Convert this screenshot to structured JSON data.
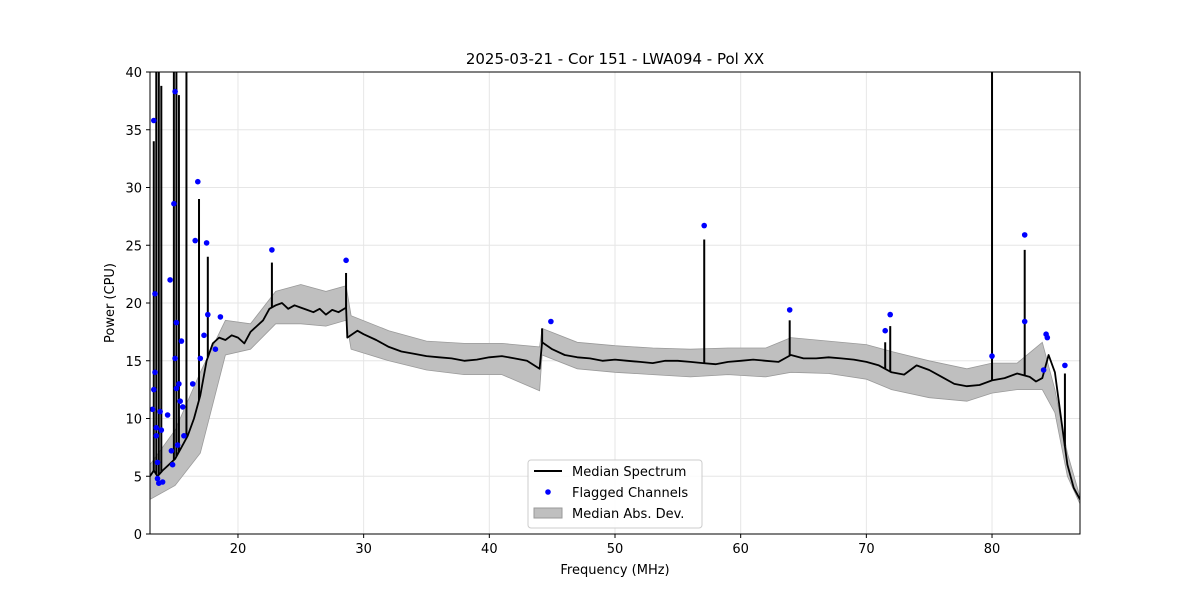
{
  "chart_data": {
    "type": "line",
    "title": "2025-03-21 - Cor 151 - LWA094 - Pol XX",
    "xlabel": "Frequency (MHz)",
    "ylabel": "Power (CPU)",
    "xlim": [
      13.0,
      87.0
    ],
    "ylim": [
      0,
      40
    ],
    "xticks": [
      20,
      30,
      40,
      50,
      60,
      70,
      80
    ],
    "yticks": [
      0,
      5,
      10,
      15,
      20,
      25,
      30,
      35,
      40
    ],
    "grid": true,
    "legend_position": "bottom-center",
    "colors": {
      "median": "#000000",
      "flagged": "#0000ff",
      "mad_fill": "#bfbfbf",
      "mad_edge": "#9a9a9a"
    },
    "series": [
      {
        "name": "Median Spectrum",
        "x": [
          13.0,
          13.3,
          13.6,
          14.0,
          14.5,
          15.0,
          15.5,
          16.0,
          16.5,
          17.0,
          17.5,
          18.0,
          18.5,
          19.0,
          19.5,
          20.0,
          20.5,
          21.0,
          21.5,
          22.0,
          22.5,
          23.0,
          23.5,
          24.0,
          24.5,
          25.0,
          25.5,
          26.0,
          26.5,
          27.0,
          27.5,
          28.0,
          28.6,
          28.7,
          29.5,
          30.0,
          31.0,
          32.0,
          33.0,
          34.0,
          35.0,
          36.0,
          37.0,
          38.0,
          39.0,
          40.0,
          41.0,
          42.0,
          43.0,
          44.0,
          44.2,
          45.0,
          46.0,
          47.0,
          48.0,
          49.0,
          50.0,
          51.0,
          52.0,
          53.0,
          54.0,
          55.0,
          56.0,
          57.0,
          58.0,
          59.0,
          60.0,
          61.0,
          62.0,
          63.0,
          64.0,
          65.0,
          66.0,
          67.0,
          68.0,
          69.0,
          70.0,
          71.0,
          72.0,
          73.0,
          74.0,
          75.0,
          76.0,
          77.0,
          78.0,
          79.0,
          80.0,
          81.0,
          82.0,
          83.0,
          83.5,
          84.0,
          84.5,
          85.0,
          85.5,
          86.0,
          86.5,
          87.0
        ],
        "values": [
          5.0,
          5.5,
          5.0,
          5.5,
          6.0,
          6.5,
          7.5,
          8.5,
          10.0,
          12.0,
          15.0,
          16.5,
          17.0,
          16.8,
          17.2,
          17.0,
          16.5,
          17.5,
          18.0,
          18.5,
          19.5,
          19.8,
          20.0,
          19.5,
          19.8,
          19.6,
          19.4,
          19.2,
          19.5,
          19.0,
          19.4,
          19.2,
          19.6,
          17.0,
          17.6,
          17.3,
          16.8,
          16.2,
          15.8,
          15.6,
          15.4,
          15.3,
          15.2,
          15.0,
          15.1,
          15.3,
          15.4,
          15.2,
          15.0,
          14.3,
          16.6,
          16.0,
          15.5,
          15.3,
          15.2,
          15.0,
          15.1,
          15.0,
          14.9,
          14.8,
          15.0,
          15.0,
          14.9,
          14.8,
          14.7,
          14.9,
          15.0,
          15.1,
          15.0,
          14.9,
          15.5,
          15.2,
          15.2,
          15.3,
          15.2,
          15.1,
          14.9,
          14.6,
          14.0,
          13.8,
          14.6,
          14.2,
          13.6,
          13.0,
          12.8,
          12.9,
          13.3,
          13.5,
          13.9,
          13.6,
          13.2,
          13.5,
          15.5,
          14.0,
          10.0,
          6.0,
          4.0,
          3.0
        ]
      },
      {
        "name": "Flagged Channels",
        "x": [
          13.2,
          13.3,
          13.3,
          13.4,
          13.4,
          13.5,
          13.5,
          13.6,
          13.6,
          13.7,
          13.8,
          13.9,
          14.0,
          14.4,
          14.6,
          14.7,
          14.8,
          14.9,
          15.0,
          15.0,
          15.1,
          15.1,
          15.2,
          15.3,
          15.4,
          15.5,
          15.6,
          15.7,
          16.4,
          16.6,
          16.8,
          17.0,
          17.3,
          17.5,
          17.6,
          18.2,
          18.6,
          22.7,
          28.6,
          44.9,
          57.1,
          63.9,
          71.5,
          71.9,
          80.0,
          82.6,
          82.6,
          84.1,
          84.3,
          84.4,
          85.8
        ],
        "values": [
          10.8,
          12.5,
          35.8,
          20.8,
          14.0,
          9.2,
          8.5,
          6.2,
          4.8,
          4.4,
          10.6,
          9.0,
          4.5,
          10.3,
          22.0,
          7.2,
          6.0,
          28.6,
          38.3,
          15.2,
          18.3,
          12.6,
          7.7,
          13.0,
          11.5,
          16.7,
          11.0,
          8.5,
          13.0,
          25.4,
          30.5,
          15.2,
          17.2,
          25.2,
          19.0,
          16.0,
          18.8,
          24.6,
          23.7,
          18.4,
          26.7,
          19.4,
          17.6,
          19.0,
          15.4,
          25.9,
          18.4,
          14.2,
          17.3,
          17.0,
          14.6
        ]
      },
      {
        "name": "Median Abs. Dev.",
        "x": [
          13.0,
          15.0,
          17.0,
          19.0,
          21.0,
          23.0,
          25.0,
          27.0,
          28.6,
          29.0,
          32.0,
          35.0,
          38.0,
          41.0,
          44.0,
          44.2,
          47.0,
          50.0,
          53.0,
          56.0,
          59.0,
          62.0,
          64.0,
          67.0,
          70.0,
          72.0,
          75.0,
          78.0,
          80.0,
          82.0,
          84.0,
          85.0,
          86.0,
          87.0
        ],
        "lower": [
          3.0,
          4.2,
          7.0,
          15.5,
          16.0,
          18.2,
          18.2,
          18.0,
          18.5,
          16.0,
          15.0,
          14.2,
          13.8,
          13.8,
          12.4,
          15.5,
          14.3,
          14.0,
          13.8,
          13.6,
          13.8,
          13.6,
          14.0,
          13.9,
          13.4,
          12.5,
          11.8,
          11.5,
          12.2,
          12.5,
          12.5,
          10.5,
          5.0,
          2.6
        ],
        "upper": [
          6.0,
          9.0,
          14.0,
          18.5,
          18.2,
          21.0,
          21.6,
          21.0,
          21.5,
          18.9,
          17.6,
          16.7,
          16.5,
          16.5,
          16.2,
          17.8,
          16.6,
          16.3,
          16.1,
          16.0,
          16.1,
          16.1,
          17.0,
          16.7,
          16.4,
          15.8,
          15.0,
          14.3,
          14.8,
          14.8,
          16.6,
          12.5,
          7.0,
          3.2
        ]
      }
    ],
    "spikes": [
      {
        "x": 13.3,
        "to": 34.0
      },
      {
        "x": 13.5,
        "to": 40.0
      },
      {
        "x": 13.7,
        "to": 40.0
      },
      {
        "x": 13.9,
        "to": 38.8
      },
      {
        "x": 14.9,
        "to": 40.0
      },
      {
        "x": 15.1,
        "to": 40.0
      },
      {
        "x": 15.3,
        "to": 38.0
      },
      {
        "x": 15.9,
        "to": 40.0
      },
      {
        "x": 16.9,
        "to": 29.0
      },
      {
        "x": 17.6,
        "to": 24.0
      },
      {
        "x": 22.7,
        "to": 23.5
      },
      {
        "x": 28.6,
        "to": 22.6
      },
      {
        "x": 44.2,
        "to": 17.8
      },
      {
        "x": 57.1,
        "to": 25.5
      },
      {
        "x": 63.9,
        "to": 18.5
      },
      {
        "x": 71.5,
        "to": 16.6
      },
      {
        "x": 71.9,
        "to": 18.0
      },
      {
        "x": 80.0,
        "to": 40.0
      },
      {
        "x": 82.6,
        "to": 24.6
      },
      {
        "x": 85.8,
        "to": 13.9
      }
    ]
  }
}
